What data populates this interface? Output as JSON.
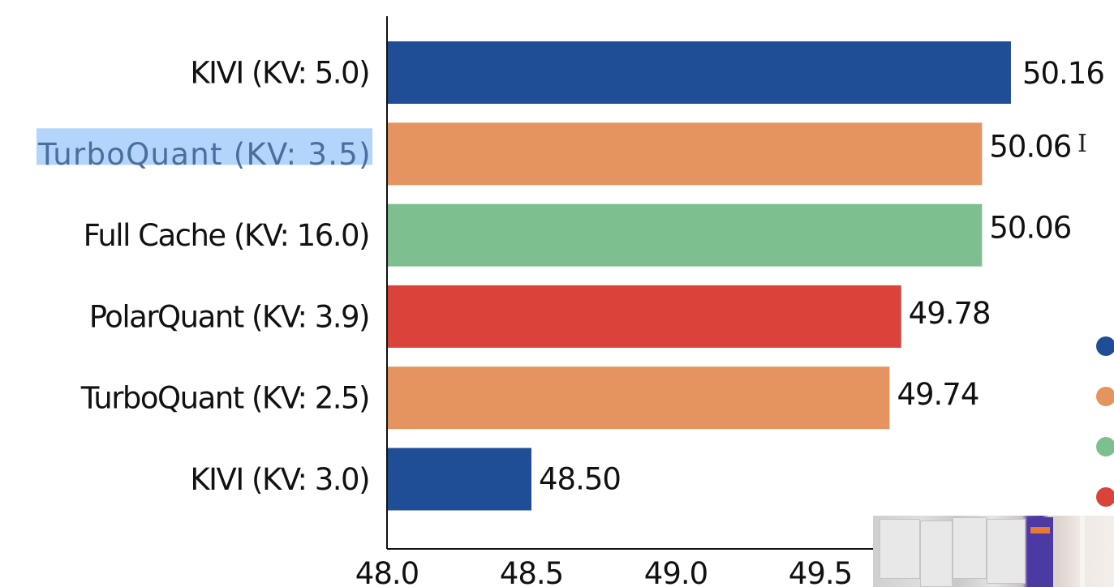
{
  "chart_data": {
    "type": "bar",
    "orientation": "horizontal",
    "title": "",
    "xlabel": "",
    "ylabel": "",
    "categories": [
      "KIVI (KV: 5.0)",
      "TurboQuant (KV: 3.5)",
      "Full Cache (KV: 16.0)",
      "PolarQuant (KV: 3.9)",
      "TurboQuant (KV: 2.5)",
      "KIVI (KV: 3.0)"
    ],
    "values": [
      50.16,
      50.06,
      50.06,
      49.78,
      49.74,
      48.5
    ],
    "value_labels": [
      "50.16",
      "50.06",
      "50.06",
      "49.78",
      "49.74",
      "48.50"
    ],
    "bar_colors": [
      "#1f4e96",
      "#e59460",
      "#7dbf8e",
      "#d9433a",
      "#e59460",
      "#1f4e96"
    ],
    "xlim": [
      48.0,
      50.3
    ],
    "xticks": [
      48.0,
      48.5,
      49.0,
      49.5
    ],
    "xtick_labels": [
      "48.0",
      "48.5",
      "49.0",
      "49.5"
    ],
    "grid": false,
    "legend": {
      "placement": "right (cut off)",
      "markers": [
        "#1f4e96",
        "#e59460",
        "#7dbf8e",
        "#d9433a"
      ]
    },
    "highlighted_category": "TurboQuant (KV: 3.5)"
  },
  "overlay": {
    "video_thumbnail": "presenter-camera",
    "cursor": "text-cursor-icon"
  }
}
